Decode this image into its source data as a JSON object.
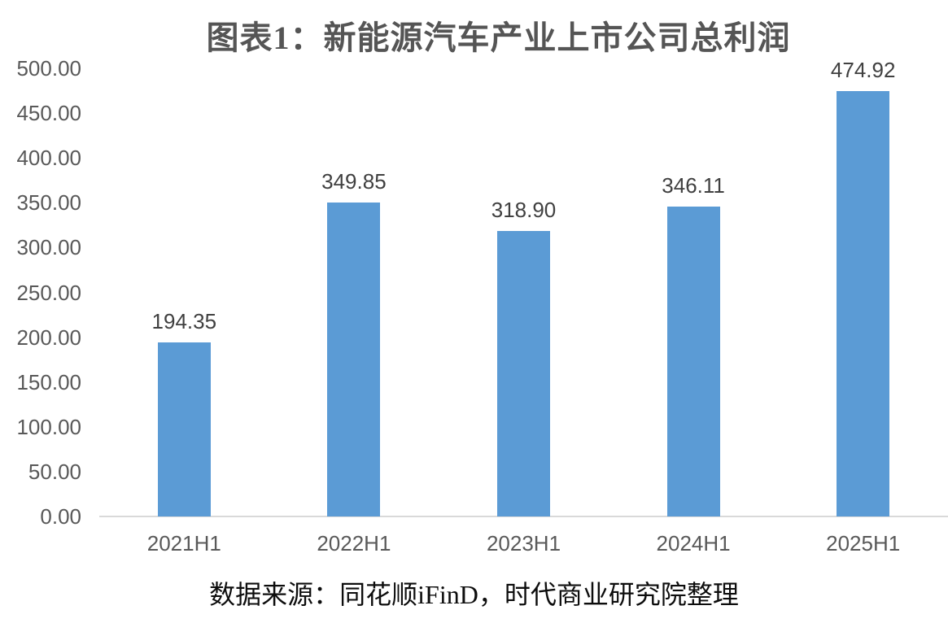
{
  "chart_data": {
    "type": "bar",
    "title": "图表1：新能源汽车产业上市公司总利润",
    "categories": [
      "2021H1",
      "2022H1",
      "2023H1",
      "2024H1",
      "2025H1"
    ],
    "values": [
      194.35,
      349.85,
      318.9,
      346.11,
      474.92
    ],
    "data_labels": [
      "194.35",
      "349.85",
      "318.90",
      "346.11",
      "474.92"
    ],
    "y_ticks": [
      "0.00",
      "50.00",
      "100.00",
      "150.00",
      "200.00",
      "250.00",
      "300.00",
      "350.00",
      "400.00",
      "450.00",
      "500.00"
    ],
    "ylim": [
      0,
      500
    ],
    "y_tick_step": 50,
    "xlabel": "",
    "ylabel": "",
    "grid": false,
    "legend": "none",
    "source_note": "数据来源：同花顺iFinD，时代商业研究院整理"
  },
  "colors": {
    "bar": "#5B9BD5",
    "axis_line": "#D9D9D9",
    "tick_label": "#595959",
    "data_label": "#404040",
    "title": "#555555",
    "source": "#0d0d0d",
    "background": "#ffffff"
  }
}
